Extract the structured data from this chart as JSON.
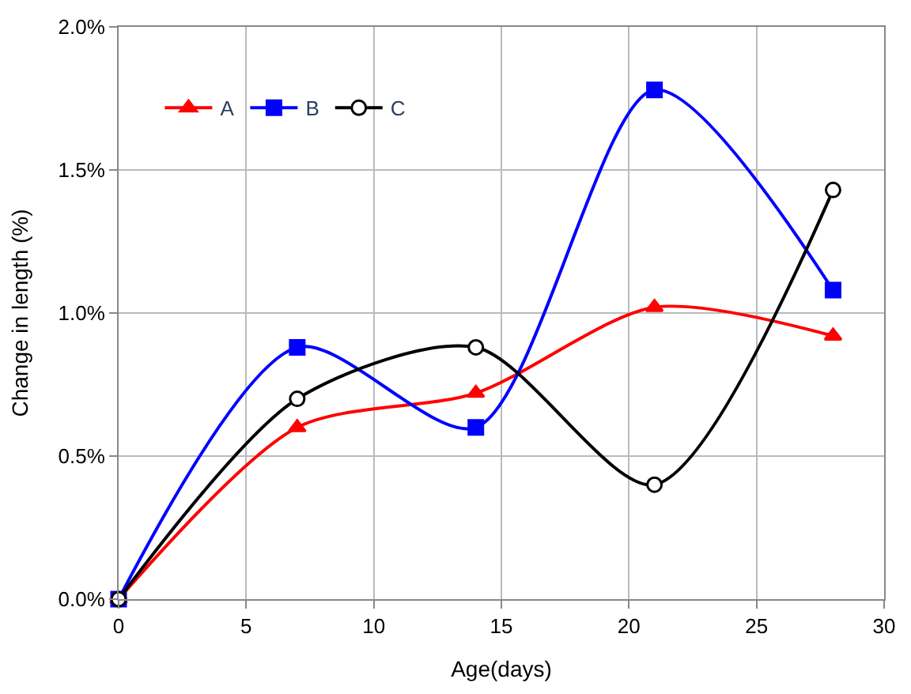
{
  "chart_data": {
    "type": "line",
    "xlabel": "Age(days)",
    "ylabel": "Change in length (%)",
    "x": [
      0,
      7,
      14,
      21,
      28
    ],
    "series": [
      {
        "name": "A",
        "color": "#ff0000",
        "marker": "triangle",
        "values": [
          0,
          0.6,
          0.72,
          1.02,
          0.92
        ]
      },
      {
        "name": "B",
        "color": "#0000ff",
        "marker": "square",
        "values": [
          0,
          0.88,
          0.6,
          1.78,
          1.08
        ]
      },
      {
        "name": "C",
        "color": "#000000",
        "marker": "circle",
        "values": [
          0,
          0.7,
          0.88,
          0.4,
          1.43
        ]
      }
    ],
    "xlim": [
      0,
      30
    ],
    "xticks": [
      0,
      5,
      10,
      15,
      20,
      25,
      30
    ],
    "ylim": [
      0,
      2
    ],
    "yticks": [
      {
        "value": 0,
        "label": "0.0%"
      },
      {
        "value": 0.5,
        "label": "0.5%"
      },
      {
        "value": 1,
        "label": "1.0%"
      },
      {
        "value": 1.5,
        "label": "1.5%"
      },
      {
        "value": 2,
        "label": "2.0%"
      }
    ],
    "grid": true,
    "legend": "top left",
    "line_style": "solid"
  }
}
